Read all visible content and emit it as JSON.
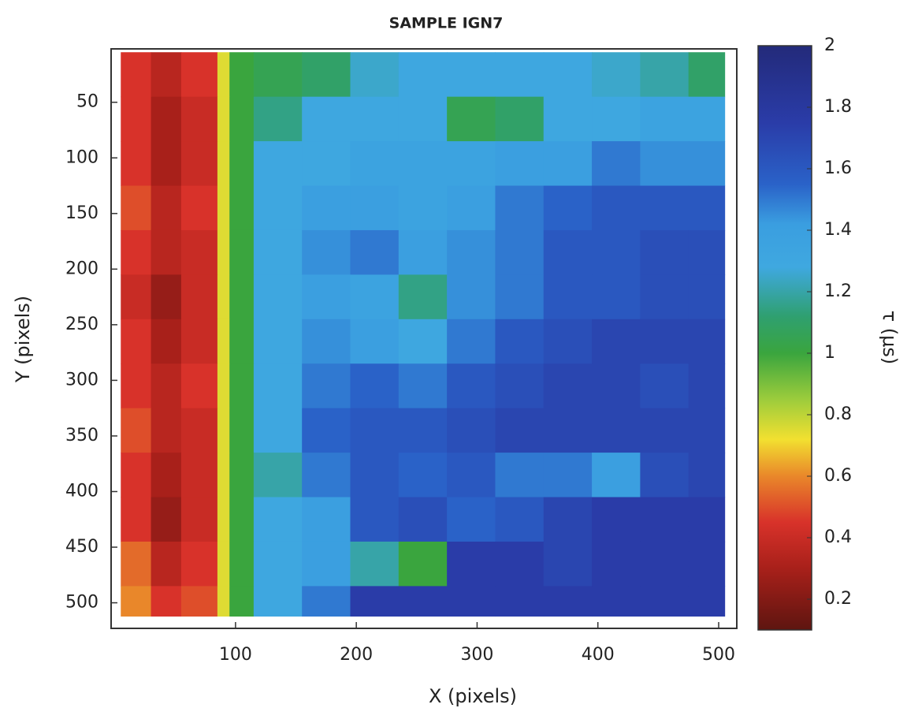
{
  "chart_data": {
    "type": "heatmap",
    "title": "SAMPLE IGN7",
    "title_color": "#b22a2a",
    "x_label": "X (pixels)",
    "y_label": "Y (pixels)",
    "colorbar_label": "τ (μs)",
    "xlim": [
      -3,
      515
    ],
    "ylim": [
      2,
      523
    ],
    "y_inverted": true,
    "xticks": [
      100,
      200,
      300,
      400,
      500
    ],
    "yticks": [
      50,
      100,
      150,
      200,
      250,
      300,
      350,
      400,
      450,
      500
    ],
    "clim": [
      0.1,
      2
    ],
    "cticks": [
      0.2,
      0.4,
      0.6,
      0.8,
      1,
      1.2,
      1.4,
      1.6,
      1.8,
      2
    ],
    "colormap": [
      {
        "value": 0.1,
        "color": "#5e1510"
      },
      {
        "value": 0.3,
        "color": "#a8201a"
      },
      {
        "value": 0.45,
        "color": "#d8322a"
      },
      {
        "value": 0.6,
        "color": "#e9872a"
      },
      {
        "value": 0.72,
        "color": "#f2e030"
      },
      {
        "value": 0.85,
        "color": "#9ccc3c"
      },
      {
        "value": 1.0,
        "color": "#3aa53e"
      },
      {
        "value": 1.12,
        "color": "#2fa070"
      },
      {
        "value": 1.28,
        "color": "#3fa8e0"
      },
      {
        "value": 1.42,
        "color": "#3a9ee0"
      },
      {
        "value": 1.55,
        "color": "#2a62c8"
      },
      {
        "value": 1.75,
        "color": "#2a3ca8"
      },
      {
        "value": 2.0,
        "color": "#232a7a"
      }
    ],
    "x_edges": [
      5,
      30,
      55,
      85,
      95,
      115,
      155,
      195,
      235,
      275,
      315,
      355,
      395,
      435,
      475,
      505
    ],
    "y_edges": [
      5,
      45,
      85,
      125,
      165,
      205,
      245,
      285,
      325,
      365,
      405,
      445,
      485,
      512
    ],
    "values": [
      [
        0.45,
        0.35,
        0.45,
        0.75,
        1.0,
        1.05,
        1.1,
        1.25,
        1.3,
        1.3,
        1.3,
        1.3,
        1.25,
        1.2,
        1.1
      ],
      [
        0.45,
        0.3,
        0.4,
        0.75,
        1.0,
        1.15,
        1.3,
        1.3,
        1.3,
        1.05,
        1.1,
        1.3,
        1.3,
        1.35,
        1.35
      ],
      [
        0.45,
        0.3,
        0.4,
        0.75,
        1.0,
        1.3,
        1.3,
        1.35,
        1.35,
        1.35,
        1.4,
        1.4,
        1.5,
        1.45,
        1.45
      ],
      [
        0.5,
        0.35,
        0.45,
        0.75,
        1.0,
        1.3,
        1.4,
        1.4,
        1.35,
        1.4,
        1.5,
        1.55,
        1.6,
        1.6,
        1.6
      ],
      [
        0.45,
        0.35,
        0.4,
        0.75,
        1.0,
        1.3,
        1.45,
        1.5,
        1.4,
        1.45,
        1.5,
        1.6,
        1.6,
        1.65,
        1.65
      ],
      [
        0.4,
        0.25,
        0.4,
        0.75,
        1.0,
        1.3,
        1.4,
        1.35,
        1.15,
        1.45,
        1.5,
        1.6,
        1.6,
        1.65,
        1.65
      ],
      [
        0.45,
        0.3,
        0.4,
        0.75,
        1.0,
        1.3,
        1.45,
        1.4,
        1.3,
        1.5,
        1.6,
        1.65,
        1.7,
        1.7,
        1.7
      ],
      [
        0.45,
        0.35,
        0.45,
        0.75,
        1.0,
        1.3,
        1.5,
        1.55,
        1.5,
        1.6,
        1.65,
        1.7,
        1.7,
        1.65,
        1.7
      ],
      [
        0.5,
        0.35,
        0.4,
        0.75,
        1.0,
        1.3,
        1.55,
        1.6,
        1.6,
        1.65,
        1.7,
        1.7,
        1.7,
        1.7,
        1.7
      ],
      [
        0.45,
        0.3,
        0.4,
        0.75,
        1.0,
        1.2,
        1.5,
        1.6,
        1.55,
        1.6,
        1.5,
        1.5,
        1.4,
        1.65,
        1.7
      ],
      [
        0.45,
        0.25,
        0.4,
        0.75,
        1.0,
        1.3,
        1.4,
        1.6,
        1.65,
        1.55,
        1.6,
        1.7,
        1.75,
        1.75,
        1.75
      ],
      [
        0.55,
        0.35,
        0.45,
        0.75,
        1.0,
        1.3,
        1.4,
        1.2,
        1.0,
        1.75,
        1.75,
        1.7,
        1.75,
        1.75,
        1.75
      ],
      [
        0.6,
        0.45,
        0.5,
        0.75,
        1.0,
        1.3,
        1.5,
        1.75,
        1.75,
        1.75,
        1.75,
        1.75,
        1.75,
        1.75,
        1.75
      ]
    ]
  }
}
